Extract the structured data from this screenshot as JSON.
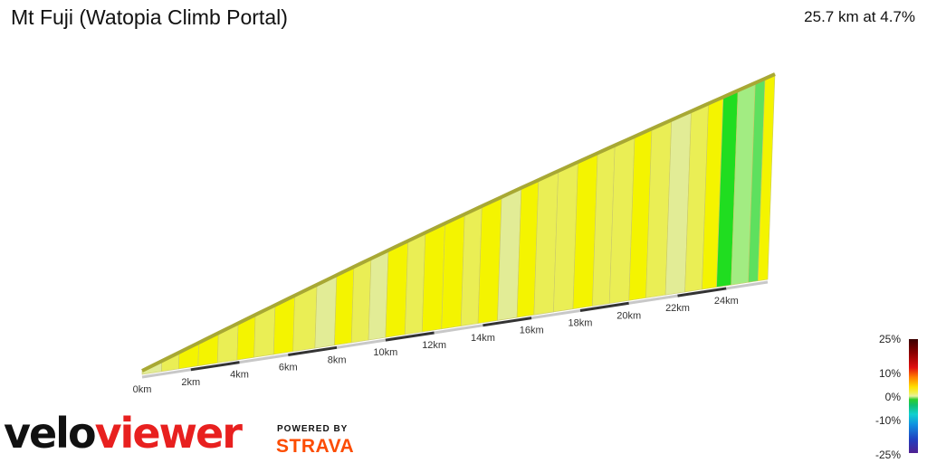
{
  "header": {
    "title": "Mt Fuji (Watopia Climb Portal)",
    "stats": "25.7 km at 4.7%"
  },
  "colors": {
    "profile_top_stroke": "#a8a834",
    "axis_dark": "#333333",
    "axis_light": "#c8c8c8",
    "gradient_colors": {
      "low": "#e2ec96",
      "mid": "#eaee55",
      "high": "#f4f400",
      "easy_green": "#5ee05e",
      "flat_green": "#20dd20",
      "pale_green": "#a2ec82"
    }
  },
  "chart_data": {
    "type": "area",
    "x_unit": "km",
    "x_range": [
      0,
      25.7
    ],
    "x_ticks": [
      "0km",
      "2km",
      "4km",
      "6km",
      "8km",
      "10km",
      "12km",
      "14km",
      "16km",
      "18km",
      "20km",
      "22km",
      "24km"
    ],
    "tick_values_km": [
      0,
      2,
      4,
      6,
      8,
      10,
      12,
      14,
      16,
      18,
      20,
      22,
      24
    ],
    "distance_km": 25.7,
    "avg_gradient_pct": 4.7,
    "segments_km": [
      0,
      0.8,
      1.5,
      2.3,
      3.1,
      3.9,
      4.6,
      5.4,
      6.2,
      7.1,
      7.9,
      8.6,
      9.3,
      10.0,
      10.8,
      11.5,
      12.3,
      13.1,
      13.8,
      14.6,
      15.4,
      16.1,
      16.9,
      17.7,
      18.5,
      19.2,
      20.0,
      20.7,
      21.5,
      22.3,
      23.0,
      23.6,
      24.2,
      24.9,
      25.3,
      25.7
    ],
    "segment_colors": [
      "low",
      "mid",
      "high",
      "high",
      "mid",
      "high",
      "mid",
      "high",
      "mid",
      "low",
      "high",
      "mid",
      "low",
      "high",
      "mid",
      "high",
      "high",
      "mid",
      "high",
      "low",
      "high",
      "mid",
      "mid",
      "high",
      "mid",
      "mid",
      "high",
      "mid",
      "low",
      "mid",
      "high",
      "flat_green",
      "pale_green",
      "easy_green",
      "high"
    ]
  },
  "legend": {
    "labels": [
      "25%",
      "10%",
      "0%",
      "-10%",
      "-25%"
    ]
  },
  "branding": {
    "logo_part1": "velo",
    "logo_part2": "viewer",
    "powered_by": "POWERED BY",
    "strava": "STRAVA"
  }
}
